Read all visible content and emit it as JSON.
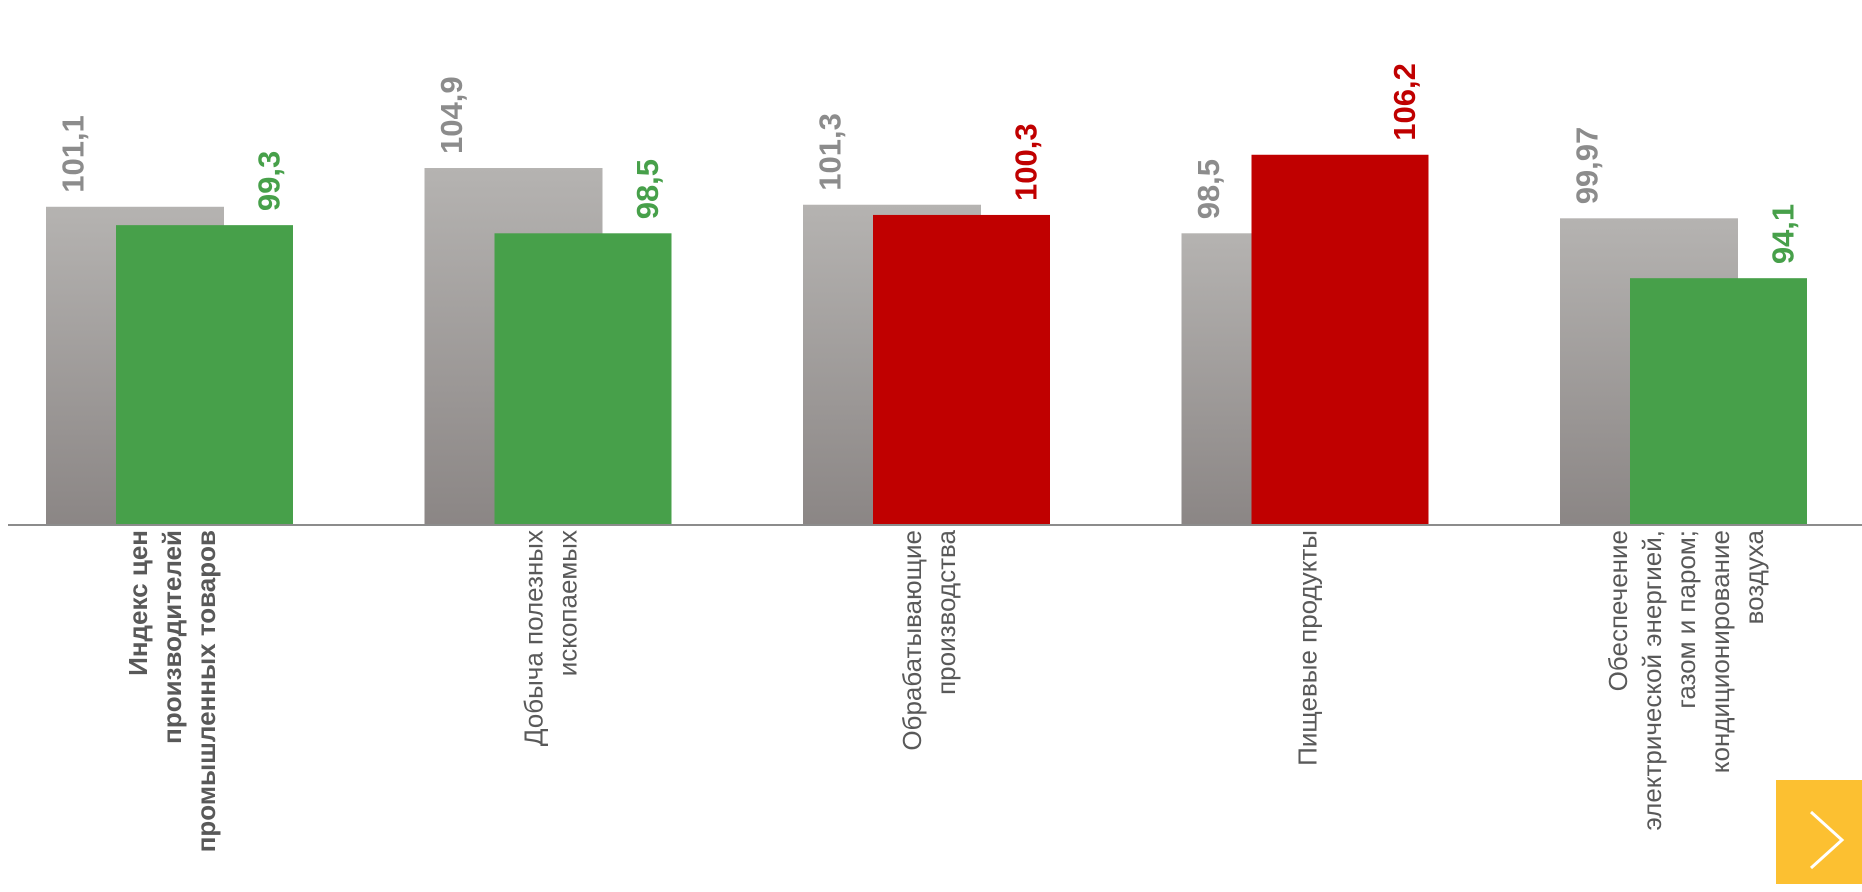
{
  "chart_data": {
    "type": "bar",
    "categories": [
      [
        "Индекс цен",
        "производителей",
        "промышленных товаров"
      ],
      [
        "Добыча полезных",
        "ископаемых"
      ],
      [
        "Обрабатывающие",
        "производства"
      ],
      [
        "Пищевые продукты"
      ],
      [
        "Обеспечение",
        "электрической энергией,",
        "газом и паром;",
        "кондиционирование",
        "воздуха"
      ]
    ],
    "first_category_bold": true,
    "series": [
      {
        "values": [
          101.1,
          104.9,
          101.3,
          98.5,
          99.97
        ],
        "labels": [
          "101,1",
          "104,9",
          "101,3",
          "98,5",
          "99,97"
        ],
        "color": "#a6a4a3",
        "label_color": "#8c8c8c"
      },
      {
        "values": [
          99.3,
          98.5,
          100.3,
          106.2,
          94.1
        ],
        "labels": [
          "99,3",
          "98,5",
          "100,3",
          "106,2",
          "94,1"
        ],
        "colors": [
          "#47a04a",
          "#47a04a",
          "#c00000",
          "#c00000",
          "#47a04a"
        ]
      }
    ],
    "gray_gradient": [
      "#b5b3b1",
      "#8b8685"
    ],
    "xlabel": "",
    "ylabel": "",
    "ylim": [
      70,
      108
    ],
    "grid": false,
    "legend": "none",
    "value_label_rotation": -90,
    "category_label_rotation": -90
  },
  "navigation": {
    "next_icon": "chevron-right-icon",
    "next_color": "#fcc031"
  }
}
